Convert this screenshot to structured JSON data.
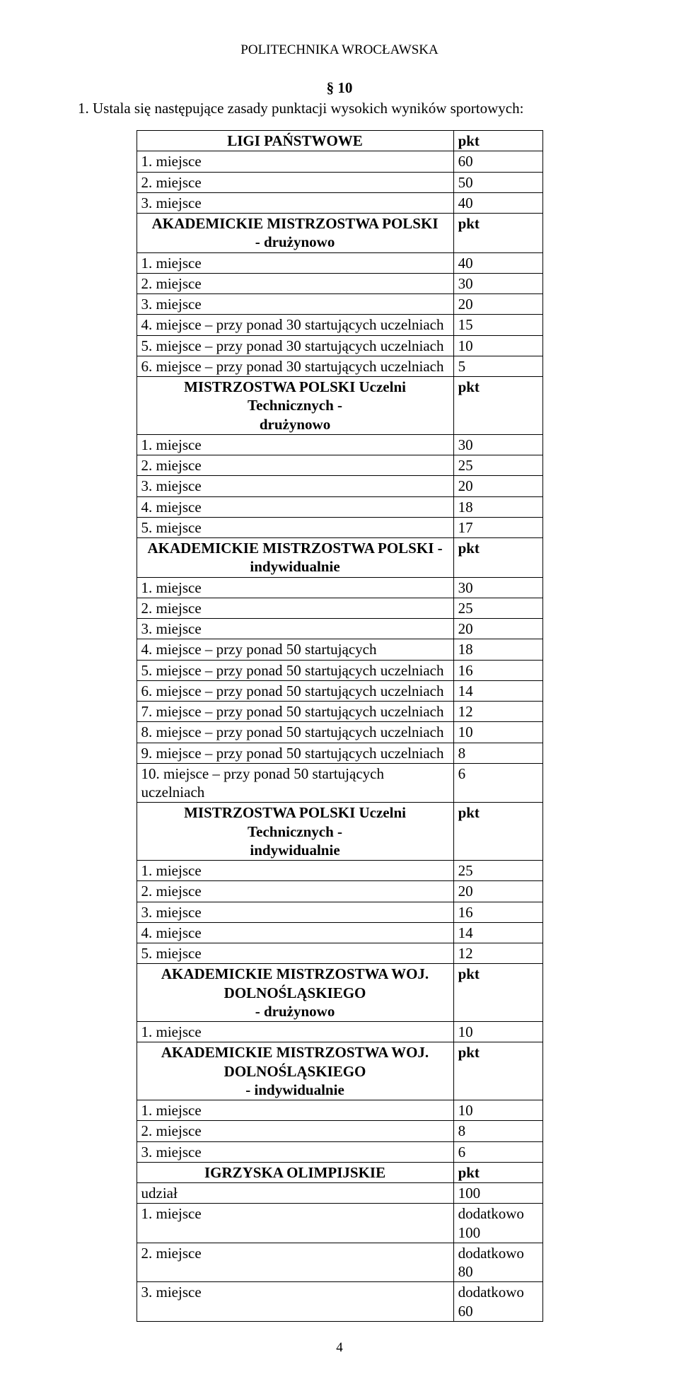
{
  "headerTitle": "POLITECHNIKA WROCŁAWSKA",
  "sectionNum": "§ 10",
  "intro": "1. Ustala się następujące zasady punktacji wysokich wyników sportowych:",
  "pageNumber": "4",
  "rows": [
    {
      "label": "LIGI PAŃSTWOWE",
      "value": "pkt",
      "bold": true,
      "center": true
    },
    {
      "label": "1. miejsce",
      "value": "60"
    },
    {
      "label": "2. miejsce",
      "value": "50"
    },
    {
      "label": "3. miejsce",
      "value": "40"
    },
    {
      "label": "AKADEMICKIE MISTRZOSTWA POLSKI\n- drużynowo",
      "value": "pkt",
      "bold": true,
      "center": true
    },
    {
      "label": "1. miejsce",
      "value": "40"
    },
    {
      "label": "2. miejsce",
      "value": "30"
    },
    {
      "label": "3. miejsce",
      "value": "20"
    },
    {
      "label": "4. miejsce – przy ponad 30 startujących uczelniach",
      "value": "15"
    },
    {
      "label": "5. miejsce – przy ponad 30 startujących uczelniach",
      "value": "10"
    },
    {
      "label": "6. miejsce – przy ponad 30 startujących uczelniach",
      "value": "5"
    },
    {
      "label": "MISTRZOSTWA POLSKI Uczelni Technicznych -\ndrużynowo",
      "value": "pkt",
      "bold": true,
      "center": true
    },
    {
      "label": "1. miejsce",
      "value": "30"
    },
    {
      "label": "2. miejsce",
      "value": "25"
    },
    {
      "label": "3. miejsce",
      "value": "20"
    },
    {
      "label": "4. miejsce",
      "value": "18"
    },
    {
      "label": "5. miejsce",
      "value": "17"
    },
    {
      "label": "AKADEMICKIE MISTRZOSTWA POLSKI -\nindywidualnie",
      "value": "pkt",
      "bold": true,
      "center": true
    },
    {
      "label": "1. miejsce",
      "value": "30"
    },
    {
      "label": "2. miejsce",
      "value": "25"
    },
    {
      "label": "3. miejsce",
      "value": "20"
    },
    {
      "label": "4. miejsce – przy ponad 50 startujących",
      "value": "18"
    },
    {
      "label": "5. miejsce – przy ponad 50 startujących uczelniach",
      "value": "16"
    },
    {
      "label": "6. miejsce – przy ponad 50 startujących uczelniach",
      "value": "14"
    },
    {
      "label": "7. miejsce – przy ponad 50 startujących uczelniach",
      "value": "12"
    },
    {
      "label": "8. miejsce – przy ponad 50 startujących uczelniach",
      "value": "10"
    },
    {
      "label": "9. miejsce – przy ponad 50 startujących uczelniach",
      "value": "8"
    },
    {
      "label": "10. miejsce – przy ponad 50 startujących uczelniach",
      "value": "6"
    },
    {
      "label": "MISTRZOSTWA POLSKI Uczelni Technicznych -\nindywidualnie",
      "value": "pkt",
      "bold": true,
      "center": true
    },
    {
      "label": "1. miejsce",
      "value": "25"
    },
    {
      "label": "2. miejsce",
      "value": "20"
    },
    {
      "label": "3. miejsce",
      "value": "16"
    },
    {
      "label": "4. miejsce",
      "value": "14"
    },
    {
      "label": "5. miejsce",
      "value": "12"
    },
    {
      "label": "AKADEMICKIE MISTRZOSTWA WOJ.\nDOLNOŚLĄSKIEGO\n- drużynowo",
      "value": "pkt",
      "bold": true,
      "center": true
    },
    {
      "label": "1. miejsce",
      "value": "10"
    },
    {
      "label": "AKADEMICKIE MISTRZOSTWA WOJ.\nDOLNOŚLĄSKIEGO\n- indywidualnie",
      "value": "pkt",
      "bold": true,
      "center": true
    },
    {
      "label": "1. miejsce",
      "value": "10"
    },
    {
      "label": "2. miejsce",
      "value": "8"
    },
    {
      "label": "3. miejsce",
      "value": "6"
    },
    {
      "label": "IGRZYSKA OLIMPIJSKIE",
      "value": "pkt",
      "bold": true,
      "center": true
    },
    {
      "label": "udział",
      "value": "100"
    },
    {
      "label": "1. miejsce",
      "value": "dodatkowo\n100"
    },
    {
      "label": "2. miejsce",
      "value": "dodatkowo\n80"
    },
    {
      "label": "3. miejsce",
      "value": "dodatkowo\n60"
    }
  ]
}
